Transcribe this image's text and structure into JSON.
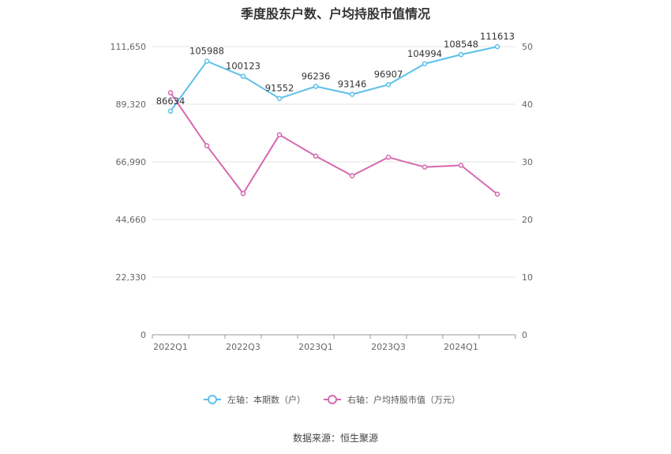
{
  "chart_data": {
    "type": "line",
    "title": "季度股东户数、户均持股市值情况",
    "categories": [
      "2022Q1",
      "2022Q2",
      "2022Q3",
      "2022Q4",
      "2023Q1",
      "2023Q2",
      "2023Q3",
      "2023Q4",
      "2024Q1",
      "2024Q2"
    ],
    "x_tick_labels": [
      "2022Q1",
      "2022Q3",
      "2023Q1",
      "2023Q3",
      "2024Q1"
    ],
    "left_axis": {
      "ylim": [
        0,
        111650
      ],
      "ticks": [
        "0",
        "22,330",
        "44,660",
        "66,990",
        "89,320",
        "111,650"
      ]
    },
    "right_axis": {
      "ylim": [
        0,
        50
      ],
      "ticks": [
        "0",
        "10",
        "20",
        "30",
        "40",
        "50"
      ]
    },
    "series": [
      {
        "name": "左轴：本期数（户）",
        "axis": "left",
        "color": "#5bc0eb",
        "values": [
          86634,
          105988,
          100123,
          91552,
          96236,
          93146,
          96907,
          104994,
          108548,
          111613
        ],
        "labels": [
          "86634",
          "105988",
          "100123",
          "91552",
          "96236",
          "93146",
          "96907",
          "104994",
          "108548",
          "111613"
        ]
      },
      {
        "name": "右轴：户均持股市值（万元）",
        "axis": "right",
        "color": "#d668b0",
        "values": [
          42.0,
          32.8,
          24.5,
          34.7,
          31.0,
          27.6,
          30.8,
          29.1,
          29.4,
          24.4
        ]
      }
    ],
    "grid": true,
    "legend_position": "bottom"
  },
  "source_text": "数据来源：恒生聚源"
}
